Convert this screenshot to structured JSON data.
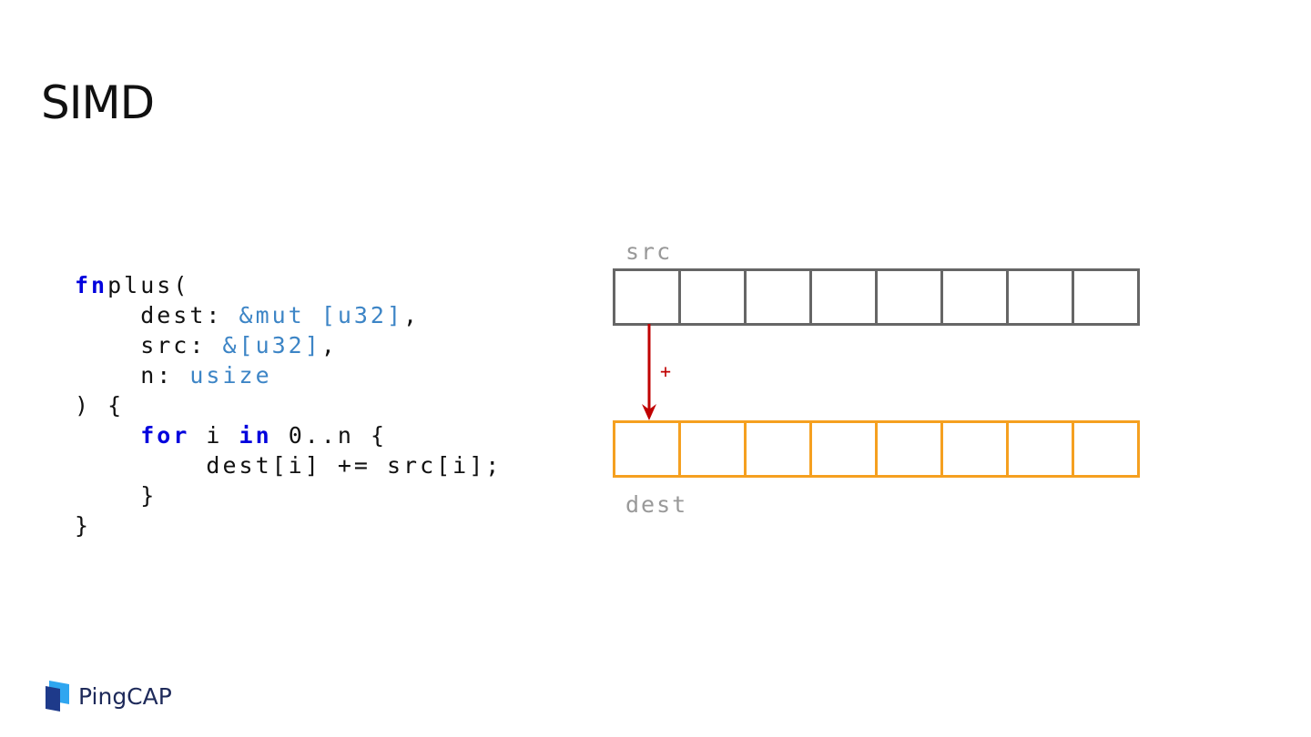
{
  "title": "SIMD",
  "code": [
    [
      [
        "kw",
        "fn"
      ],
      [
        "",
        "plus("
      ]
    ],
    [
      [
        "",
        "    dest: "
      ],
      [
        "ty",
        "&mut [u32]"
      ],
      [
        "",
        ","
      ]
    ],
    [
      [
        "",
        "    src: "
      ],
      [
        "ty",
        "&[u32]"
      ],
      [
        "",
        ","
      ]
    ],
    [
      [
        "",
        "    n: "
      ],
      [
        "ty",
        "usize"
      ]
    ],
    [
      [
        "",
        ") {"
      ]
    ],
    [
      [
        "",
        "    "
      ],
      [
        "kw",
        "for"
      ],
      [
        "",
        " i "
      ],
      [
        "kw",
        "in"
      ],
      [
        "",
        " 0..n {"
      ]
    ],
    [
      [
        "",
        "        dest[i] += src[i];"
      ]
    ],
    [
      [
        "",
        "    }"
      ]
    ],
    [
      [
        "",
        "}"
      ]
    ]
  ],
  "diagram": {
    "src_label": "src",
    "dest_label": "dest",
    "operator": "+",
    "cells": 8,
    "colors": {
      "src": "#666666",
      "dest": "#f5a020",
      "arrow": "#c00000"
    }
  },
  "logo": {
    "text": "PingCAP"
  }
}
